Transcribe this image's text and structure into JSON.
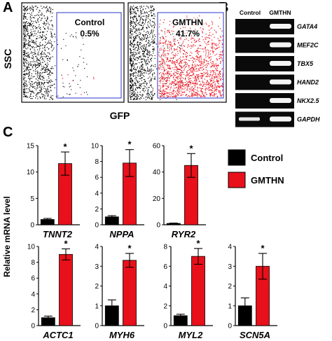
{
  "panels": {
    "A": {
      "letter": "A",
      "y_axis_label": "SSC",
      "x_axis_label": "GFP",
      "plots": [
        {
          "name": "Control",
          "percent": "0.5%"
        },
        {
          "name": "GMTHN",
          "percent": "41.7%"
        }
      ]
    },
    "B": {
      "letter": "B",
      "lane_headers": [
        "Control",
        "GMTHN"
      ],
      "genes": [
        "GATA4",
        "MEF2C",
        "TBX5",
        "HAND2",
        "NKX2.5",
        "GAPDH"
      ]
    },
    "C": {
      "letter": "C",
      "ylabel": "Relative mRNA level",
      "legend": [
        {
          "name": "Control",
          "color": "#000000"
        },
        {
          "name": "GMTHN",
          "color": "#e8101a"
        }
      ]
    }
  },
  "chart_data": [
    {
      "type": "bar",
      "title": "TNNT2",
      "categories": [
        "Control",
        "GMTHN"
      ],
      "values": [
        1,
        11.6
      ],
      "errors": [
        0.2,
        2.2
      ],
      "ylim": [
        0,
        15
      ],
      "yticks": [
        0,
        5,
        10,
        15
      ],
      "significance": [
        "",
        "*"
      ]
    },
    {
      "type": "bar",
      "title": "NPPA",
      "categories": [
        "Control",
        "GMTHN"
      ],
      "values": [
        1,
        7.8
      ],
      "errors": [
        0.15,
        1.7
      ],
      "ylim": [
        0,
        10
      ],
      "yticks": [
        0,
        2,
        4,
        6,
        8,
        10
      ],
      "significance": [
        "",
        "*"
      ]
    },
    {
      "type": "bar",
      "title": "RYR2",
      "categories": [
        "Control",
        "GMTHN"
      ],
      "values": [
        1,
        45
      ],
      "errors": [
        0.3,
        9
      ],
      "ylim": [
        0,
        60
      ],
      "yticks": [
        0,
        20,
        40,
        60
      ],
      "significance": [
        "",
        "*"
      ]
    },
    {
      "type": "bar",
      "title": "ACTC1",
      "categories": [
        "Control",
        "GMTHN"
      ],
      "values": [
        1,
        9
      ],
      "errors": [
        0.2,
        0.7
      ],
      "ylim": [
        0,
        10
      ],
      "yticks": [
        0,
        2,
        4,
        6,
        8,
        10
      ],
      "significance": [
        "",
        "*"
      ]
    },
    {
      "type": "bar",
      "title": "MYH6",
      "categories": [
        "Control",
        "GMTHN"
      ],
      "values": [
        1,
        3.3
      ],
      "errors": [
        0.3,
        0.35
      ],
      "ylim": [
        0,
        4
      ],
      "yticks": [
        0,
        1,
        2,
        3,
        4
      ],
      "significance": [
        "",
        "*"
      ]
    },
    {
      "type": "bar",
      "title": "MYL2",
      "categories": [
        "Control",
        "GMTHN"
      ],
      "values": [
        1,
        7
      ],
      "errors": [
        0.15,
        0.8
      ],
      "ylim": [
        0,
        8
      ],
      "yticks": [
        0,
        2,
        4,
        6,
        8
      ],
      "significance": [
        "",
        "*"
      ]
    },
    {
      "type": "bar",
      "title": "SCN5A",
      "categories": [
        "Control",
        "GMTHN"
      ],
      "values": [
        1,
        3
      ],
      "errors": [
        0.4,
        0.65
      ],
      "ylim": [
        0,
        4
      ],
      "yticks": [
        0,
        1,
        2,
        3,
        4
      ],
      "significance": [
        "",
        "*"
      ]
    }
  ]
}
